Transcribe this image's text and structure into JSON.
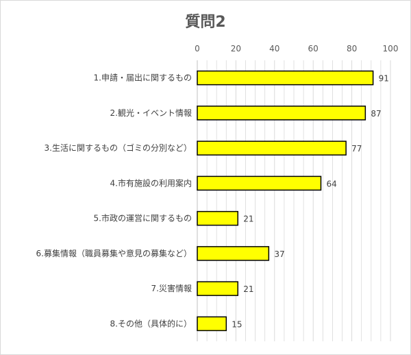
{
  "chart_data": {
    "type": "bar",
    "orientation": "horizontal",
    "title": "質問2",
    "categories": [
      "1.申請・届出に関するもの",
      "2.観光・イベント情報",
      "3.生活に関するもの（ゴミの分別など）",
      "4.市有施設の利用案内",
      "5.市政の運営に関するもの",
      "6.募集情報（職員募集や意見の募集など）",
      "7.災害情報",
      "8.その他（具体的に）"
    ],
    "values": [
      91,
      87,
      77,
      64,
      21,
      37,
      21,
      15
    ],
    "xlim": [
      0,
      100
    ],
    "xticks": [
      0,
      20,
      40,
      60,
      80,
      100
    ],
    "xtick_labels": [
      "0",
      "20",
      "40",
      "60",
      "80",
      "100"
    ],
    "axis_position": "top",
    "grid": true,
    "legend": "none",
    "colors": {
      "bar_fill": "#ffff00",
      "bar_stroke": "#000000",
      "grid": "#d9d9d9"
    }
  }
}
